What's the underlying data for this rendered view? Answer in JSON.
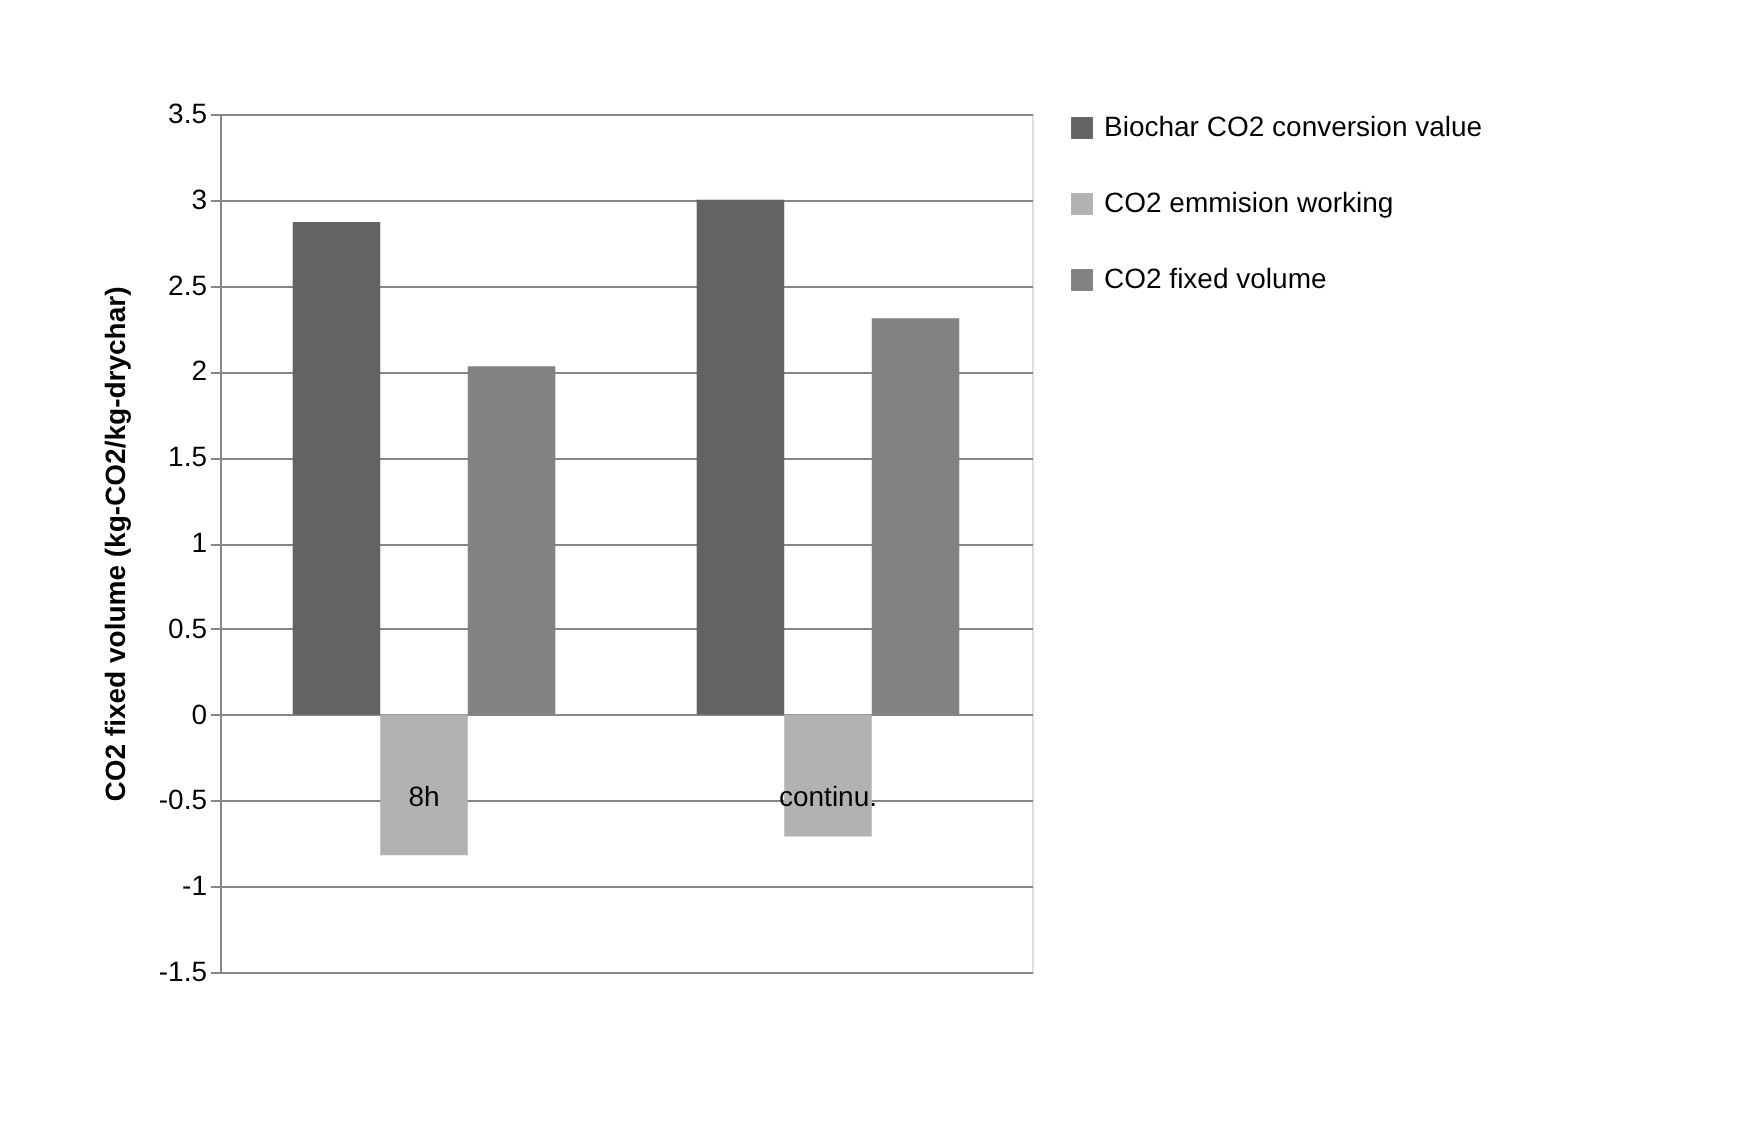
{
  "chart_data": {
    "type": "bar",
    "ylabel": "CO2 fixed volume  (kg-CO2/kg-drychar)",
    "categories": [
      "8h",
      "continu."
    ],
    "series": [
      {
        "name": "Biochar CO2 conversion value",
        "color": "#636363",
        "values": [
          2.87,
          3.0
        ]
      },
      {
        "name": "CO2 emmision  working",
        "color": "#b2b2b2",
        "values": [
          -0.82,
          -0.71
        ]
      },
      {
        "name": "CO2 fixed volume",
        "color": "#828282",
        "values": [
          2.03,
          2.31
        ]
      }
    ],
    "ylim": [
      -1.5,
      3.5
    ],
    "yticks": [
      -1.5,
      -1,
      -0.5,
      0,
      0.5,
      1,
      1.5,
      2,
      2.5,
      3,
      3.5
    ],
    "grid": "y",
    "legend": "right"
  }
}
